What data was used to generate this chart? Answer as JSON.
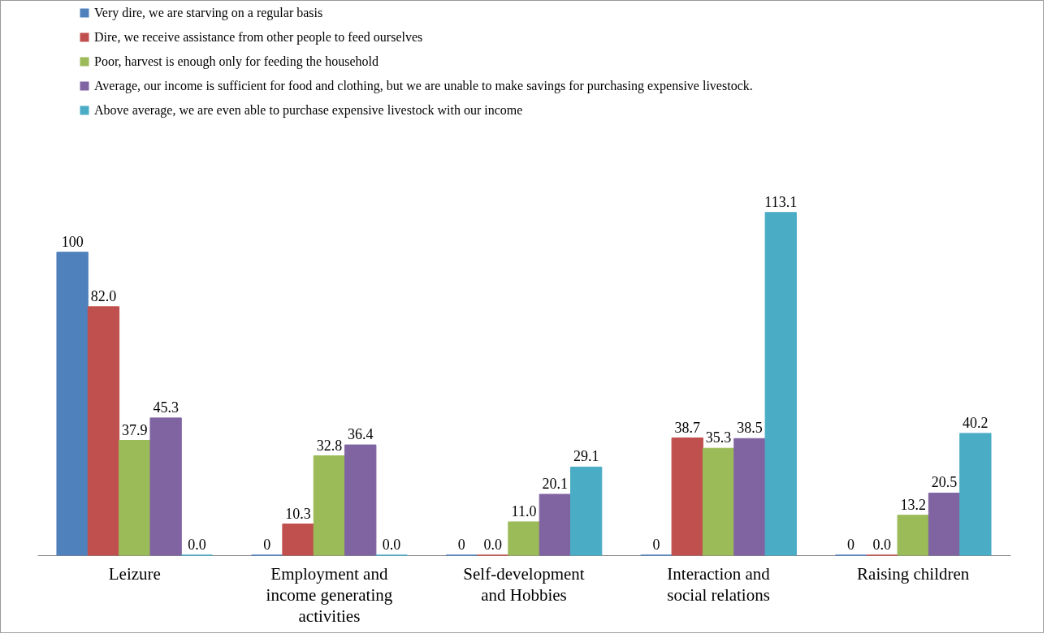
{
  "chart_data": {
    "type": "bar",
    "categories": [
      "Leizure",
      "Employment and\nincome generating\nactivities",
      "Self-development\nand Hobbies",
      "Interaction and\nsocial relations",
      "Raising children"
    ],
    "legend": "top left",
    "series": [
      {
        "name": "Very dire, we are starving on a regular basis",
        "color": "#4f81bd",
        "values": [
          100,
          0,
          0,
          0,
          0
        ],
        "value_labels": [
          "100",
          "0",
          "0",
          "0",
          "0"
        ]
      },
      {
        "name": "Dire, we receive assistance from other people to feed ourselves",
        "color": "#c0504d",
        "values": [
          82.0,
          10.3,
          0.0,
          38.7,
          0.0
        ],
        "value_labels": [
          "82.0",
          "10.3",
          "0.0",
          "38.7",
          "0.0"
        ]
      },
      {
        "name": "Poor, harvest is enough only for feeding the household",
        "color": "#9bbb59",
        "values": [
          37.9,
          32.8,
          11.0,
          35.3,
          13.2
        ],
        "value_labels": [
          "37.9",
          "32.8",
          "11.0",
          "35.3",
          "13.2"
        ]
      },
      {
        "name": "Average, our income is sufficient for food and clothing, but we are unable to make savings for purchasing expensive livestock.",
        "color": "#8064a2",
        "values": [
          45.3,
          36.4,
          20.1,
          38.5,
          20.5
        ],
        "value_labels": [
          "45.3",
          "36.4",
          "20.1",
          "38.5",
          "20.5"
        ]
      },
      {
        "name": "Above average, we are even able to purchase expensive livestock with our income",
        "color": "#4bacc6",
        "values": [
          0.0,
          0.0,
          29.1,
          113.1,
          40.2
        ],
        "value_labels": [
          "0.0",
          "0.0",
          "29.1",
          "113.1",
          "40.2"
        ]
      }
    ]
  }
}
